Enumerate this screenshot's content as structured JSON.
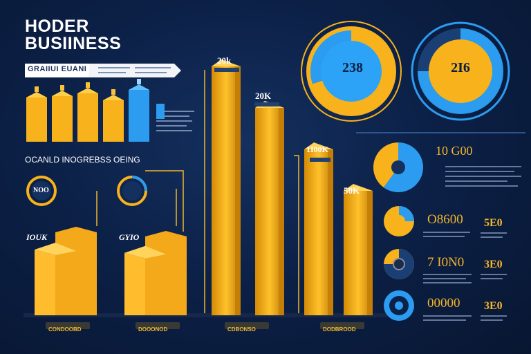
{
  "header": {
    "title_line1": "HODER",
    "title_line2": "BUSIINESS",
    "banner_text": "GRAIIUI EUANI"
  },
  "panel_mid": {
    "heading": "OCANLD INOGREBSS OEING"
  },
  "colors": {
    "gold": "#f7b21c",
    "gold_dark": "#d88a07",
    "blue": "#2b9cf0",
    "navy": "#0c2148"
  },
  "chart_data": [
    {
      "type": "bar",
      "categories": [
        "",
        "",
        "",
        "",
        ""
      ],
      "series": [
        {
          "values": [
            64,
            66,
            70,
            60,
            null
          ]
        },
        {
          "values": [
            null,
            null,
            null,
            null,
            75
          ]
        }
      ],
      "colors": [
        "#f7b21c",
        "#2b9cf0"
      ]
    },
    {
      "type": "bar",
      "labels": [
        "20k",
        "20K",
        "1I00K",
        "50K"
      ],
      "values": [
        360,
        300,
        240,
        180
      ],
      "bar_labels": [
        "20k",
        "20K",
        "1I00K",
        "50K"
      ]
    },
    {
      "type": "bar",
      "labels": [
        "IOUK",
        "GYIO"
      ],
      "values": [
        100,
        95
      ]
    },
    {
      "type": "pie",
      "center_label": "238",
      "values": [
        70,
        30
      ],
      "colors": [
        "#f7b21c",
        "#2b9cf0"
      ]
    },
    {
      "type": "pie",
      "center_label": "2I6",
      "values": [
        75,
        25
      ],
      "colors": [
        "#2b9cf0",
        "#f7b21c"
      ]
    },
    {
      "type": "pie",
      "center_label": "10 G00",
      "values": [
        60,
        40
      ],
      "colors": [
        "#2b9cf0",
        "#f7b21c"
      ]
    }
  ],
  "right_values": {
    "v1": "O8600",
    "v2": "7 I0N0",
    "v3": "00000",
    "small1": "5E0",
    "small2": "3E0",
    "small3": "3E0"
  },
  "donut_small": {
    "a": "NOO"
  },
  "bar_tops": {
    "top1": "20k",
    "top2": "20K",
    "top3": "1I00K",
    "top4": "50K",
    "left1": "IOUK",
    "left2": "GYIO"
  },
  "foot_labels": [
    "CONDOOBD",
    "DOOONOD",
    "CDBONSO",
    "DODBROOD"
  ]
}
